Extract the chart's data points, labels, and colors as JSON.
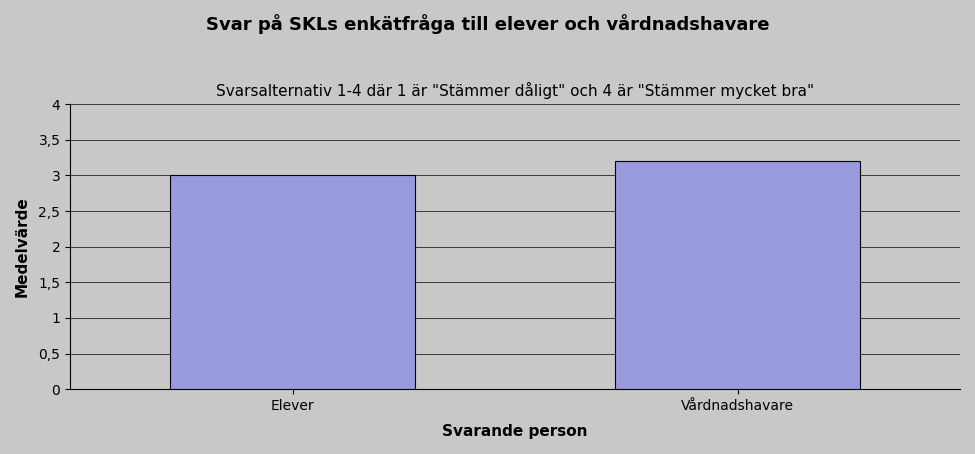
{
  "title_line1": "Svar på SKLs enkätfråga till elever och vårdnadshavare",
  "title_line2": "Svarsalternativ 1-4 där 1 är \"Stämmer dåligt\" och 4 är \"Stämmer mycket bra\"",
  "categories": [
    "Elever",
    "Vårdnadshavare"
  ],
  "values": [
    3.0,
    3.2
  ],
  "bar_color": "#9999dd",
  "bar_edgecolor": "#000000",
  "xlabel": "Svarande person",
  "ylabel": "Medelvärde",
  "ylim": [
    0,
    4
  ],
  "yticks": [
    0,
    0.5,
    1,
    1.5,
    2,
    2.5,
    3,
    3.5,
    4
  ],
  "ytick_labels": [
    "0",
    "0,5",
    "1",
    "1,5",
    "2",
    "2,5",
    "3",
    "3,5",
    "4"
  ],
  "background_color": "#c8c8c8",
  "plot_bg_color": "#c8c8c8",
  "title_fontsize": 13,
  "subtitle_fontsize": 11,
  "axis_label_fontsize": 11,
  "tick_fontsize": 10,
  "bar_width": 0.55
}
